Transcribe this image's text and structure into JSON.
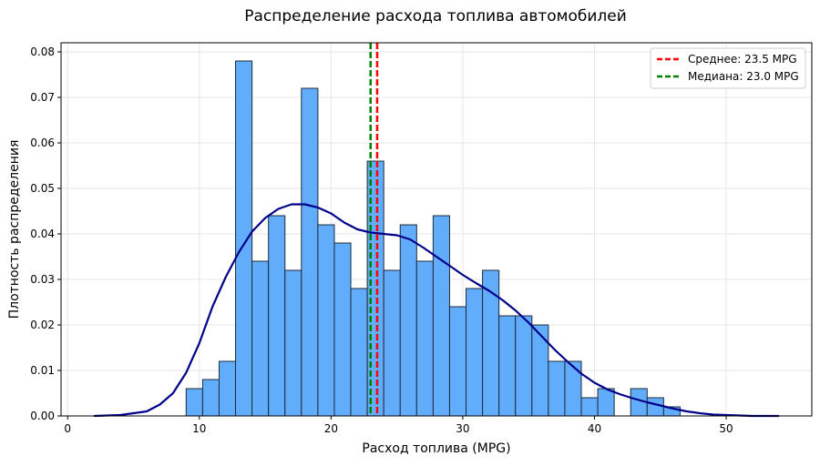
{
  "chart_data": {
    "type": "bar",
    "title": "Распределение расхода топлива автомобилей",
    "xlabel": "Расход топлива (MPG)",
    "ylabel": "Плотность распределения",
    "xlim": [
      -0.5,
      56.5
    ],
    "ylim": [
      0,
      0.082
    ],
    "xticks": [
      0,
      10,
      20,
      30,
      40,
      50
    ],
    "yticks": [
      0.0,
      0.01,
      0.02,
      0.03,
      0.04,
      0.05,
      0.06,
      0.07,
      0.08
    ],
    "grid": true,
    "legend_position": "top-right",
    "bin_edges": [
      9,
      10.25,
      11.5,
      12.75,
      14,
      15.25,
      16.5,
      17.75,
      19,
      20.25,
      21.5,
      22.75,
      24,
      25.25,
      26.5,
      27.75,
      29,
      30.25,
      31.5,
      32.75,
      34,
      35.25,
      36.5,
      37.75,
      39,
      40.25,
      41.5,
      42.75,
      44,
      45.25,
      46.5
    ],
    "densities": [
      0.006,
      0.008,
      0.012,
      0.078,
      0.034,
      0.044,
      0.032,
      0.072,
      0.042,
      0.038,
      0.028,
      0.056,
      0.032,
      0.042,
      0.034,
      0.044,
      0.024,
      0.028,
      0.032,
      0.022,
      0.022,
      0.02,
      0.012,
      0.012,
      0.004,
      0.006,
      0.0,
      0.006,
      0.004,
      0.002
    ],
    "kde": {
      "x": [
        2,
        4,
        6,
        7,
        8,
        9,
        10,
        11,
        12,
        13,
        14,
        15,
        16,
        17,
        18,
        19,
        20,
        21,
        22,
        23,
        24,
        25,
        26,
        27,
        28,
        29,
        30,
        31,
        32,
        33,
        34,
        35,
        36,
        37,
        38,
        39,
        40,
        41,
        42,
        43,
        44,
        45,
        46,
        47,
        48,
        49,
        50,
        52,
        54
      ],
      "y": [
        0.0,
        0.0002,
        0.001,
        0.0025,
        0.005,
        0.0095,
        0.016,
        0.024,
        0.0305,
        0.036,
        0.0405,
        0.0435,
        0.0455,
        0.0465,
        0.0465,
        0.0458,
        0.0445,
        0.0425,
        0.041,
        0.0403,
        0.04,
        0.0397,
        0.0388,
        0.037,
        0.035,
        0.033,
        0.031,
        0.0292,
        0.0275,
        0.0255,
        0.0232,
        0.0205,
        0.0175,
        0.0145,
        0.0118,
        0.0093,
        0.0073,
        0.0058,
        0.0047,
        0.0038,
        0.003,
        0.0023,
        0.0016,
        0.001,
        0.0006,
        0.0003,
        0.0002,
        0.0,
        0.0
      ]
    },
    "reference_lines": [
      {
        "name": "Среднее: 23.5 MPG",
        "x": 23.5,
        "color": "#ff0000"
      },
      {
        "name": "Медиана: 23.0 MPG",
        "x": 23.0,
        "color": "#008000"
      }
    ],
    "colors": {
      "bar_fill": "#62adfb",
      "bar_edge": "#1d2b3a",
      "kde_line": "#00008b",
      "grid": "#e6e6e6"
    }
  }
}
